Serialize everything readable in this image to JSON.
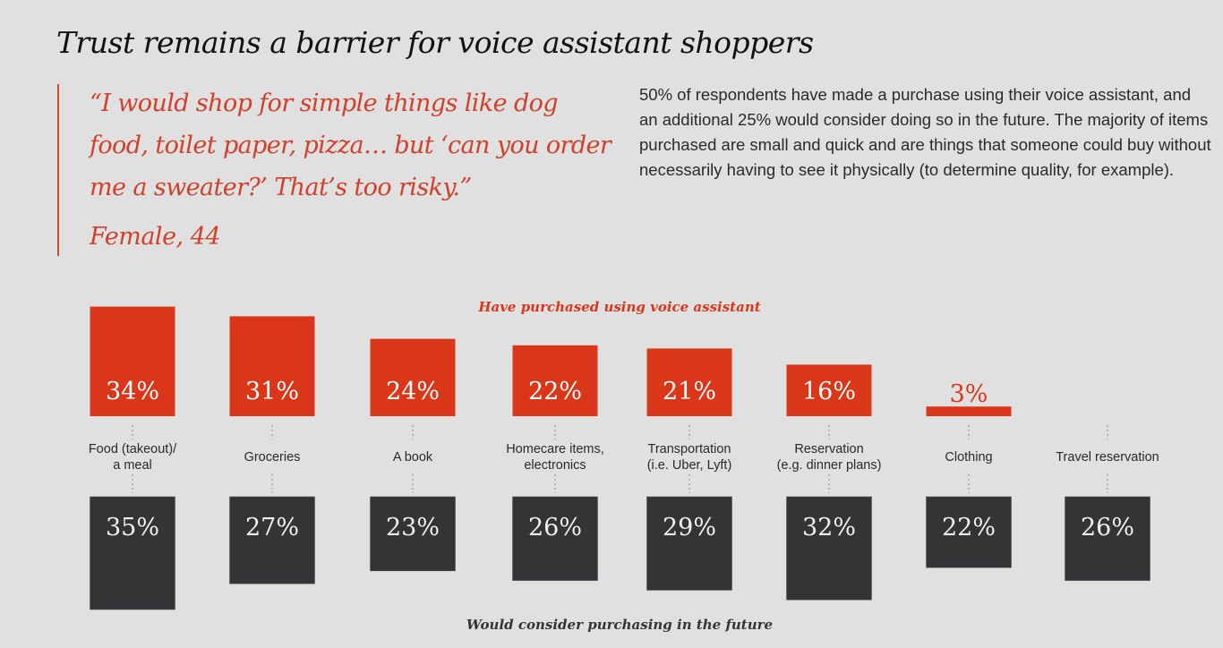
{
  "title": "Trust remains a barrier for voice assistant shoppers",
  "quote": {
    "text": "“I would shop for simple things like dog food, toilet paper, pizza… but ‘can you order me a sweater?’ That’s too risky.”",
    "attribution": "Female, 44"
  },
  "body_text": "50% of respondents have made a purchase using their voice assistant, and an additional 25% would consider doing so in the future. The majority of items purchased are small and quick and are things that someone could buy without necessarily having to see it physically (to determine quality, for example).",
  "colors": {
    "accent": "#d9361a",
    "dark": "#333435",
    "background": "#dfe0df",
    "quote_text": "#d0402a"
  },
  "chart_data": {
    "type": "bar",
    "title": "",
    "categories": [
      [
        "Food (takeout)/",
        "a meal"
      ],
      [
        "Groceries"
      ],
      [
        "A book"
      ],
      [
        "Homecare items,",
        "electronics"
      ],
      [
        "Transportation",
        "(i.e. Uber, Lyft)"
      ],
      [
        "Reservation",
        "(e.g. dinner plans)"
      ],
      [
        "Clothing"
      ],
      [
        "Travel reservation"
      ]
    ],
    "series": [
      {
        "name": "Have purchased using voice assistant",
        "values": [
          34,
          31,
          24,
          22,
          21,
          16,
          3,
          null
        ],
        "labels": [
          "34%",
          "31%",
          "24%",
          "22%",
          "21%",
          "16%",
          "3%",
          ""
        ],
        "color": "#d9361a",
        "direction": "up"
      },
      {
        "name": "Would consider purchasing in the future",
        "values": [
          35,
          27,
          23,
          26,
          29,
          32,
          22,
          26
        ],
        "labels": [
          "35%",
          "27%",
          "23%",
          "26%",
          "29%",
          "32%",
          "22%",
          "26%"
        ],
        "color": "#333435",
        "direction": "down"
      }
    ],
    "unit": "%",
    "xlabel": "",
    "ylabel": "",
    "grid": false
  }
}
